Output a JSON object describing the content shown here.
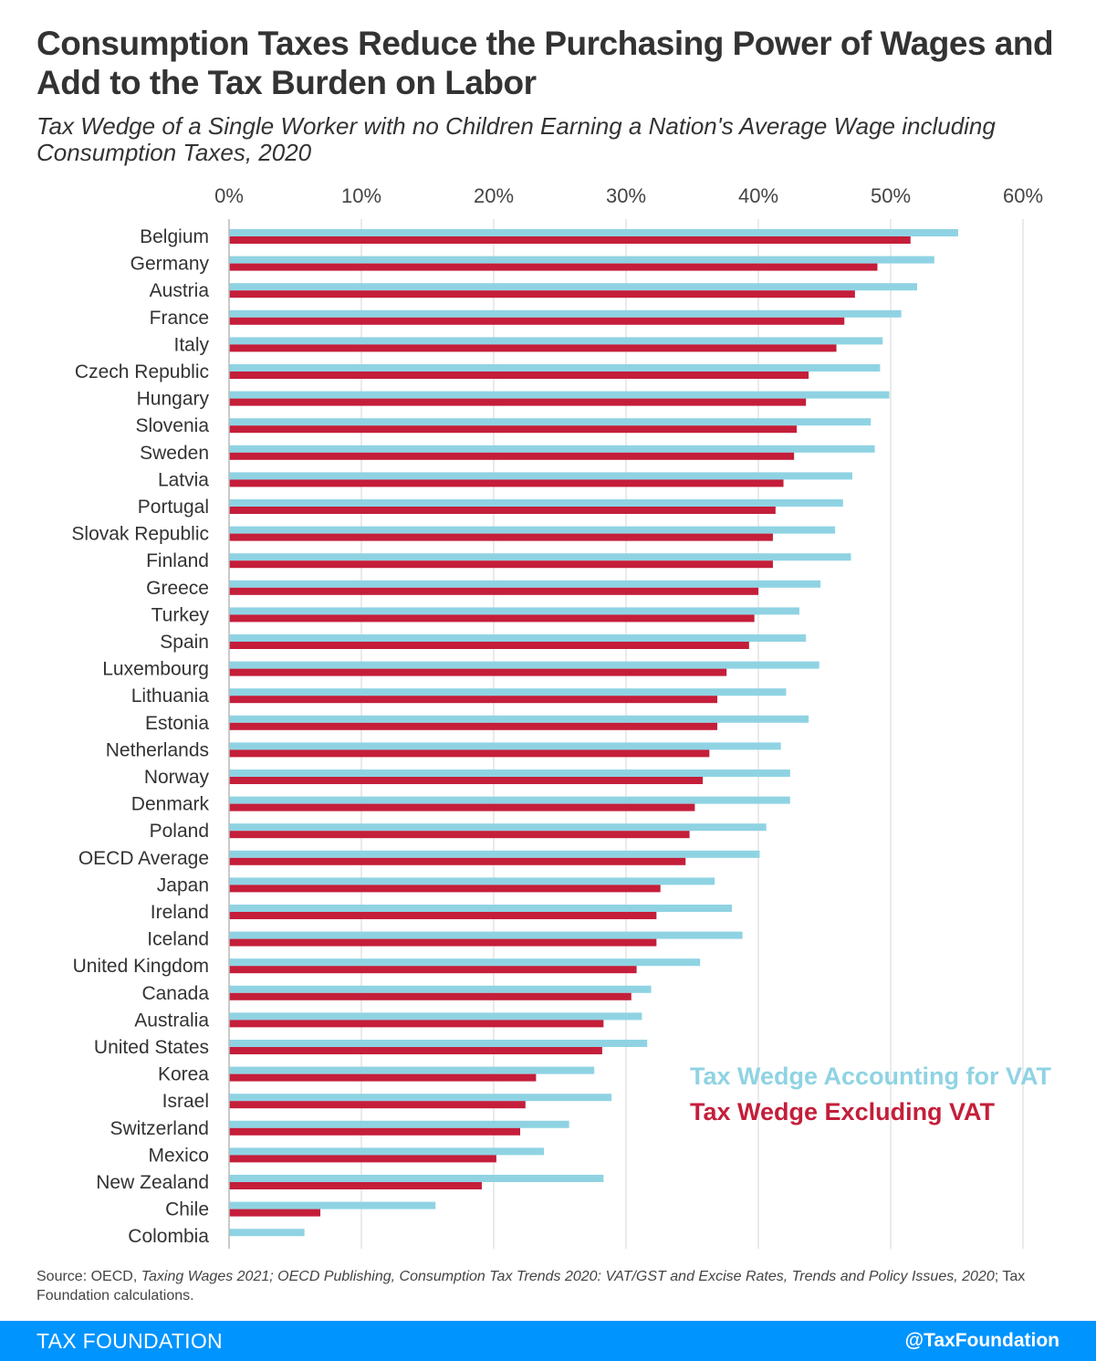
{
  "header": {
    "title": "Consumption Taxes Reduce the Purchasing Power of Wages and Add to the Tax Burden on Labor",
    "subtitle": "Tax Wedge of a Single Worker with no Children Earning a Nation's Average Wage including Consumption Taxes, 2020"
  },
  "source": {
    "prefix": "Source: OECD, ",
    "italic": "Taxing Wages 2021; OECD Publishing, Consumption Tax Trends 2020: VAT/GST and Excise Rates, Trends and Policy Issues, 2020",
    "suffix": "; Tax Foundation calculations."
  },
  "footer": {
    "brand": "TAX FOUNDATION",
    "handle": "@TaxFoundation"
  },
  "colors": {
    "vat": "#8fd3e3",
    "excl": "#c41e3a",
    "grid": "#dddddd",
    "footer": "#0094ff"
  },
  "chart_data": {
    "type": "bar",
    "orientation": "horizontal",
    "xlim": [
      0,
      60
    ],
    "ticks": [
      "0%",
      "10%",
      "20%",
      "30%",
      "40%",
      "50%",
      "60%"
    ],
    "tick_values": [
      0,
      10,
      20,
      30,
      40,
      50,
      60
    ],
    "grid": true,
    "legend_position": "bottom-right",
    "categories": [
      "Belgium",
      "Germany",
      "Austria",
      "France",
      "Italy",
      "Czech Republic",
      "Hungary",
      "Slovenia",
      "Sweden",
      "Latvia",
      "Portugal",
      "Slovak Republic",
      "Finland",
      "Greece",
      "Turkey",
      "Spain",
      "Luxembourg",
      "Lithuania",
      "Estonia",
      "Netherlands",
      "Norway",
      "Denmark",
      "Poland",
      "OECD Average",
      "Japan",
      "Ireland",
      "Iceland",
      "United Kingdom",
      "Canada",
      "Australia",
      "United States",
      "Korea",
      "Israel",
      "Switzerland",
      "Mexico",
      "New Zealand",
      "Chile",
      "Colombia"
    ],
    "series": [
      {
        "name": "Tax Wedge Accounting for VAT",
        "values": [
          55.1,
          53.3,
          52.0,
          50.8,
          49.4,
          49.2,
          49.9,
          48.5,
          48.8,
          47.1,
          46.4,
          45.8,
          47.0,
          44.7,
          43.1,
          43.6,
          44.6,
          42.1,
          43.8,
          41.7,
          42.4,
          42.4,
          40.6,
          40.1,
          36.7,
          38.0,
          38.8,
          35.6,
          31.9,
          31.2,
          31.6,
          27.6,
          28.9,
          25.7,
          23.8,
          28.3,
          15.6,
          5.7
        ]
      },
      {
        "name": "Tax Wedge Excluding VAT",
        "values": [
          51.5,
          49.0,
          47.3,
          46.5,
          45.9,
          43.8,
          43.6,
          42.9,
          42.7,
          41.9,
          41.3,
          41.1,
          41.1,
          40.0,
          39.7,
          39.3,
          37.6,
          36.9,
          36.9,
          36.3,
          35.8,
          35.2,
          34.8,
          34.5,
          32.6,
          32.3,
          32.3,
          30.8,
          30.4,
          28.3,
          28.2,
          23.2,
          22.4,
          22.0,
          20.2,
          19.1,
          6.9,
          0
        ]
      }
    ]
  }
}
